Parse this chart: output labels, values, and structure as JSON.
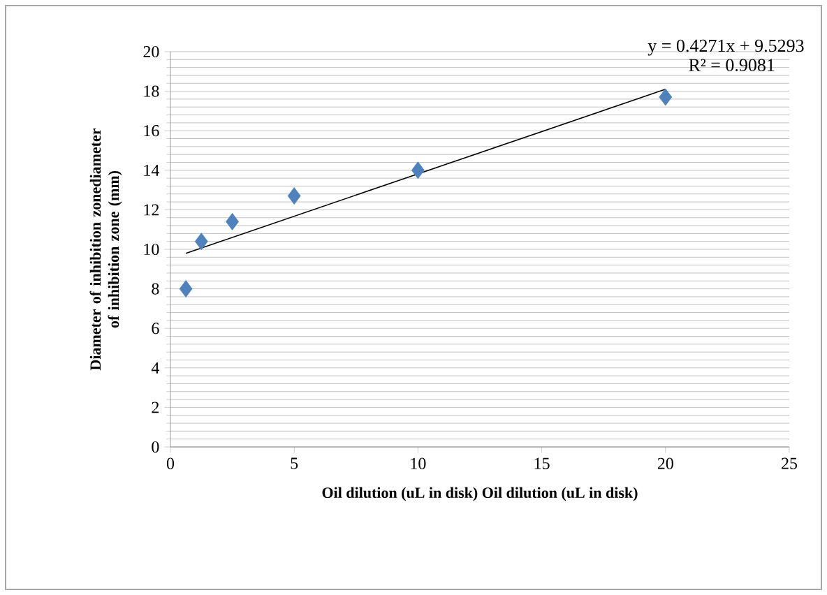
{
  "chart_data": {
    "type": "scatter",
    "xlabel": "Oil dilution (uL in disk) Oil dilution (uL in disk)",
    "ylabel": "Diameter of inhibition zonediameter of inhibition zone (mm)",
    "series": [
      {
        "color": "#4f81bd",
        "marker": "diamond",
        "x": [
          0.625,
          1.25,
          2.5,
          5,
          10,
          20
        ],
        "values": [
          8.0,
          10.4,
          11.4,
          12.7,
          14.0,
          17.7
        ]
      },
      {
        "type": "line",
        "color": "#000000",
        "marker": "none",
        "x": [
          0.625,
          20
        ],
        "values": [
          9.8,
          18.1
        ]
      }
    ],
    "annotations": [
      "y = 0.4271x + 9.5293",
      "R² = 0.9081"
    ],
    "xlim": [
      0,
      25
    ],
    "xticks": [
      0,
      5,
      10,
      15,
      20,
      25
    ],
    "ylim": [
      0,
      20
    ],
    "yticks": [
      0,
      2,
      4,
      6,
      8,
      10,
      12,
      14,
      16,
      18,
      20
    ],
    "grid": "y"
  }
}
